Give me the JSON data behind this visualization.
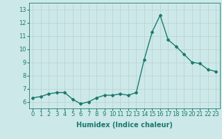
{
  "x": [
    0,
    1,
    2,
    3,
    4,
    5,
    6,
    7,
    8,
    9,
    10,
    11,
    12,
    13,
    14,
    15,
    16,
    17,
    18,
    19,
    20,
    21,
    22,
    23
  ],
  "y": [
    6.3,
    6.4,
    6.6,
    6.7,
    6.7,
    6.2,
    5.85,
    6.0,
    6.3,
    6.5,
    6.5,
    6.6,
    6.5,
    6.7,
    9.2,
    11.3,
    12.55,
    10.7,
    10.2,
    9.6,
    9.0,
    8.9,
    8.45,
    8.3
  ],
  "line_color": "#1a7a6e",
  "marker": "D",
  "markersize": 2.0,
  "linewidth": 1.0,
  "xlabel": "Humidex (Indice chaleur)",
  "xlabel_fontsize": 7,
  "ylim": [
    5.5,
    13.5
  ],
  "xlim": [
    -0.5,
    23.5
  ],
  "yticks": [
    6,
    7,
    8,
    9,
    10,
    11,
    12,
    13
  ],
  "xticks": [
    0,
    1,
    2,
    3,
    4,
    5,
    6,
    7,
    8,
    9,
    10,
    11,
    12,
    13,
    14,
    15,
    16,
    17,
    18,
    19,
    20,
    21,
    22,
    23
  ],
  "bg_color": "#cde8e8",
  "plot_bg_color": "#cde8e8",
  "grid_color": "#b8d0d0",
  "tick_fontsize": 6
}
